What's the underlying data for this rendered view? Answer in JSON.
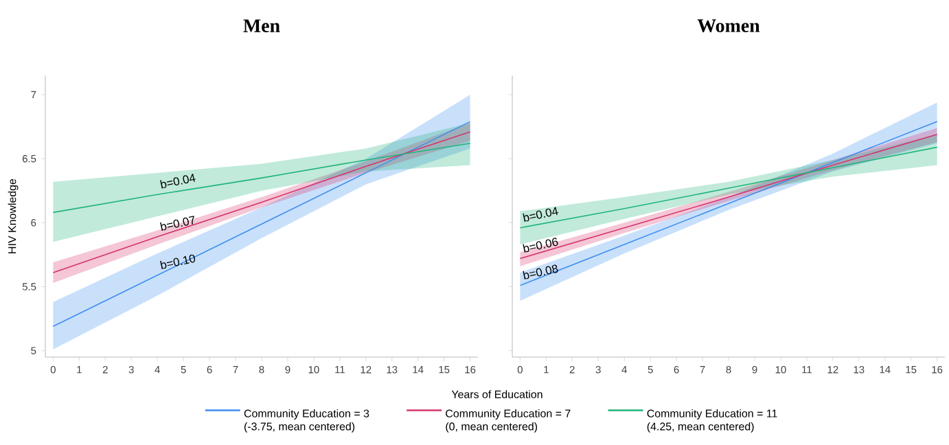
{
  "chart_data": [
    {
      "type": "line",
      "title": "Men",
      "xlabel": "Years of Education",
      "ylabel": "HIV Knowledge",
      "legend": "bottom",
      "marker": "none",
      "xlim": [
        -0.3,
        16.3
      ],
      "ylim": [
        4.95,
        7.15
      ],
      "xticks": [
        0,
        1,
        2,
        3,
        4,
        5,
        6,
        7,
        8,
        9,
        10,
        11,
        12,
        13,
        14,
        15,
        16
      ],
      "yticks": [
        5,
        5.5,
        6,
        6.5,
        7
      ],
      "series": [
        {
          "name": "Community Education = 3 (-3.75, mean centered)",
          "color": "#3d8ef0",
          "x": [
            0,
            4,
            8,
            12,
            16
          ],
          "values": [
            5.19,
            5.59,
            5.99,
            6.39,
            6.79
          ],
          "lower": [
            5.01,
            5.43,
            5.88,
            6.3,
            6.58
          ],
          "upper": [
            5.38,
            5.76,
            6.12,
            6.5,
            7.0
          ]
        },
        {
          "name": "Community Education = 7 (0, mean centered)",
          "color": "#d6336c",
          "x": [
            0,
            4,
            8,
            12,
            16
          ],
          "values": [
            5.61,
            5.89,
            6.16,
            6.44,
            6.71
          ],
          "lower": [
            5.53,
            5.83,
            6.12,
            6.39,
            6.64
          ],
          "upper": [
            5.69,
            5.94,
            6.2,
            6.48,
            6.78
          ]
        },
        {
          "name": "Community Education = 11 (4.25, mean centered)",
          "color": "#1fb57a",
          "x": [
            0,
            4,
            8,
            12,
            16
          ],
          "values": [
            6.08,
            6.22,
            6.35,
            6.49,
            6.62
          ],
          "lower": [
            5.85,
            6.05,
            6.25,
            6.4,
            6.45
          ],
          "upper": [
            6.32,
            6.39,
            6.46,
            6.58,
            6.78
          ]
        }
      ],
      "annotations": [
        "b=0.04",
        "b=0.07",
        "b=0.10"
      ]
    },
    {
      "type": "line",
      "title": "Women",
      "marker": "none",
      "tick_labels": "x",
      "xlim": [
        -0.3,
        16.3
      ],
      "ylim": [
        4.95,
        7.15
      ],
      "xticks": [
        0,
        1,
        2,
        3,
        4,
        5,
        6,
        7,
        8,
        9,
        10,
        11,
        12,
        13,
        14,
        15,
        16
      ],
      "yticks": [
        5,
        5.5,
        6,
        6.5,
        7
      ],
      "series": [
        {
          "color": "#3d8ef0",
          "x": [
            0,
            4,
            8,
            12,
            16
          ],
          "values": [
            5.51,
            5.83,
            6.15,
            6.47,
            6.79
          ],
          "lower": [
            5.39,
            5.76,
            6.1,
            6.4,
            6.62
          ],
          "upper": [
            5.61,
            5.9,
            6.2,
            6.54,
            6.94
          ]
        },
        {
          "color": "#d6336c",
          "x": [
            0,
            4,
            8,
            12,
            16
          ],
          "values": [
            5.72,
            5.96,
            6.2,
            6.45,
            6.69
          ],
          "lower": [
            5.66,
            5.92,
            6.17,
            6.41,
            6.63
          ],
          "upper": [
            5.77,
            6.0,
            6.24,
            6.49,
            6.74
          ]
        },
        {
          "color": "#1fb57a",
          "x": [
            0,
            4,
            8,
            12,
            16
          ],
          "values": [
            5.96,
            6.11,
            6.27,
            6.43,
            6.59
          ],
          "lower": [
            5.83,
            6.03,
            6.22,
            6.36,
            6.45
          ],
          "upper": [
            6.09,
            6.2,
            6.32,
            6.49,
            6.69
          ]
        }
      ],
      "annotations": [
        "b=0.04",
        "b=0.06",
        "b=0.08"
      ]
    }
  ]
}
